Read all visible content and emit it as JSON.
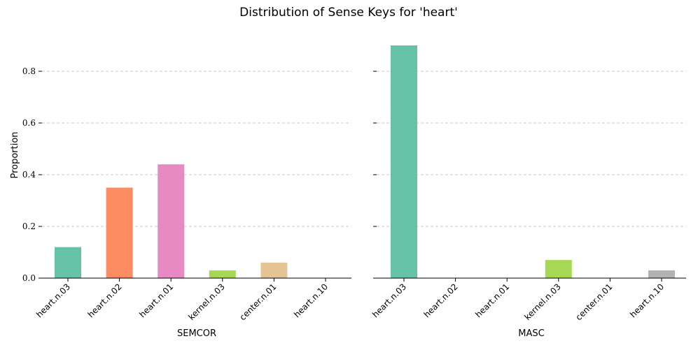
{
  "chart_data": {
    "type": "bar",
    "title": "Distribution of Sense Keys for 'heart'",
    "ylabel": "Proportion",
    "ylim": [
      0,
      0.9
    ],
    "yticks": [
      "0.0",
      "0.2",
      "0.4",
      "0.6",
      "0.8"
    ],
    "ytick_values": [
      0,
      0.2,
      0.4,
      0.6,
      0.8
    ],
    "grid": true,
    "categories": [
      "heart.n.03",
      "heart.n.02",
      "heart.n.01",
      "kernel.n.03",
      "center.n.01",
      "heart.n.10"
    ],
    "colors": [
      "#66c2a5",
      "#fc8d62",
      "#e78ac3",
      "#a6d854",
      "#e5c494",
      "#b3b3b3"
    ],
    "panels": [
      {
        "xlabel": "SEMCOR",
        "values": [
          0.12,
          0.35,
          0.44,
          0.03,
          0.06,
          0.0
        ]
      },
      {
        "xlabel": "MASC",
        "values": [
          0.9,
          0.0,
          0.0,
          0.07,
          0.0,
          0.03
        ]
      }
    ]
  }
}
